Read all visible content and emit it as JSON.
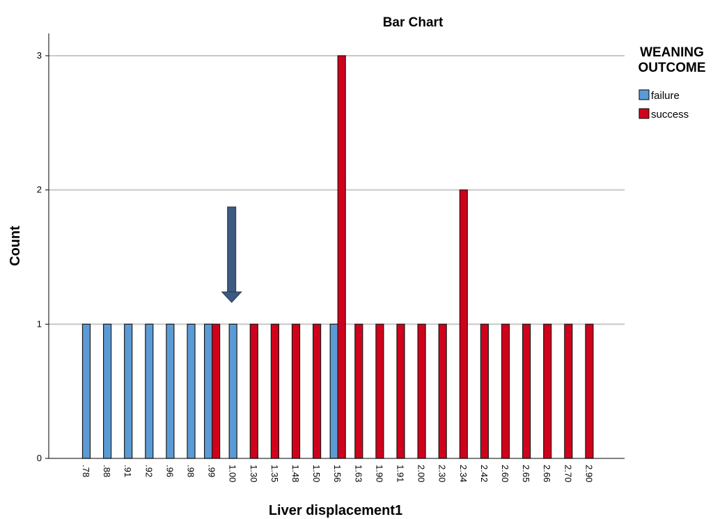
{
  "chart_data": {
    "type": "bar",
    "title": "Bar Chart",
    "xlabel": "Liver displacement1",
    "ylabel": "Count",
    "ylim": [
      0,
      3
    ],
    "yticks": [
      "0",
      "1",
      "2",
      "3"
    ],
    "grid": true,
    "legend_title": [
      "WEANING",
      "OUTCOME"
    ],
    "legend_position": "top-right",
    "categories": [
      ".78",
      ".88",
      ".91",
      ".92",
      ".96",
      ".98",
      ".99",
      "1.00",
      "1.30",
      "1.35",
      "1.48",
      "1.50",
      "1.56",
      "1.63",
      "1.90",
      "1.91",
      "2.00",
      "2.30",
      "2.34",
      "2.42",
      "2.60",
      "2.65",
      "2.66",
      "2.70",
      "2.90"
    ],
    "series": [
      {
        "name": "failure",
        "color": "#5b9bd5",
        "values": [
          1,
          1,
          1,
          1,
          1,
          1,
          1,
          1,
          0,
          0,
          0,
          0,
          1,
          0,
          0,
          0,
          0,
          0,
          0,
          0,
          0,
          0,
          0,
          0,
          0
        ]
      },
      {
        "name": "success",
        "color": "#d0021b",
        "values": [
          0,
          0,
          0,
          0,
          0,
          0,
          1,
          0,
          1,
          1,
          1,
          1,
          3,
          1,
          1,
          1,
          1,
          1,
          2,
          1,
          1,
          1,
          1,
          1,
          1
        ]
      }
    ],
    "annotation": {
      "type": "arrow-down",
      "color": "#3d5a80",
      "category": "1.00"
    }
  }
}
